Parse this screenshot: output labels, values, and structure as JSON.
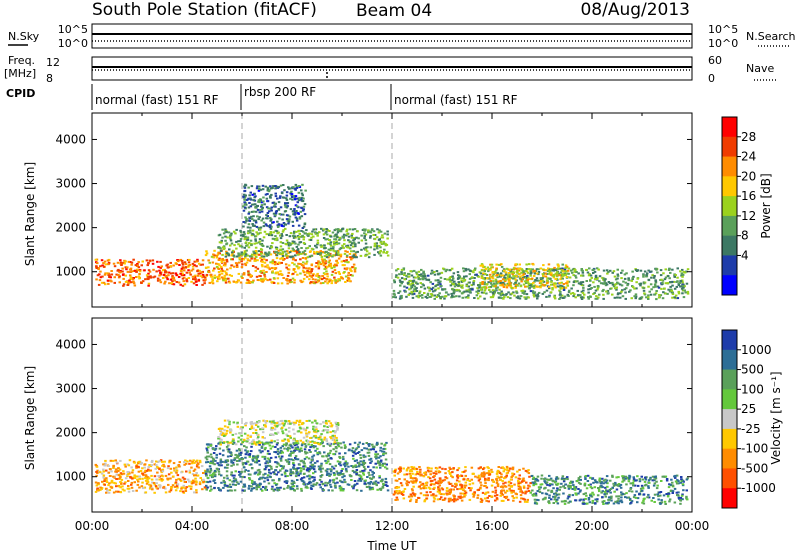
{
  "header": {
    "station": "South Pole Station (fitACF)",
    "beam": "Beam 04",
    "date": "08/Aug/2013"
  },
  "strips": {
    "nsky_label": "N.Sky",
    "nsky_ticks": [
      "10^5",
      "10^0"
    ],
    "nsearch_label": "N.Search",
    "nsearch_ticks": [
      "10^5",
      "10^0"
    ],
    "freq_label": "Freq.",
    "freq_unit": "[MHz]",
    "freq_ticks": [
      "12",
      "8"
    ],
    "nave_label": "Nave",
    "nave_ticks": [
      "60",
      "0"
    ],
    "cpid_label": "CPID",
    "cpid_segments": [
      {
        "start_h": 0,
        "end_h": 6,
        "label": "normal (fast) 151 RF"
      },
      {
        "start_h": 6,
        "end_h": 12,
        "label": "rbsp 200 RF"
      },
      {
        "start_h": 12,
        "end_h": 24,
        "label": "normal (fast) 151 RF"
      }
    ]
  },
  "chart_data": [
    {
      "type": "heatmap",
      "name": "power",
      "ylabel": "Slant Range [km]",
      "xlabel": "",
      "xlim_hours": [
        0,
        24
      ],
      "ylim": [
        200,
        4600
      ],
      "yticks": [
        1000,
        2000,
        3000,
        4000
      ],
      "colorbar": {
        "label": "Power [dB]",
        "ticks": [
          "28",
          "24",
          "20",
          "16",
          "12",
          "8",
          "4"
        ],
        "colors": [
          "#ff0000",
          "#f03c00",
          "#ff8c00",
          "#ffc800",
          "#9bd21e",
          "#5aa05a",
          "#3c7864",
          "#1e3caa",
          "#0000ff"
        ]
      },
      "regions": [
        {
          "t0": 0.1,
          "t1": 4.5,
          "r0": 700,
          "r1": 1300,
          "v": 0.82
        },
        {
          "t0": 4.5,
          "t1": 10.5,
          "r0": 750,
          "r1": 1500,
          "v": 0.7
        },
        {
          "t0": 5.0,
          "t1": 11.8,
          "r0": 1350,
          "r1": 2000,
          "v": 0.38
        },
        {
          "t0": 6.0,
          "t1": 8.5,
          "r0": 2000,
          "r1": 3000,
          "v": 0.22
        },
        {
          "t0": 12.0,
          "t1": 23.8,
          "r0": 400,
          "r1": 1100,
          "v": 0.35
        },
        {
          "t0": 15.5,
          "t1": 19.0,
          "r0": 650,
          "r1": 1200,
          "v": 0.6
        }
      ]
    },
    {
      "type": "heatmap",
      "name": "velocity",
      "ylabel": "Slant Range [km]",
      "xlabel": "Time UT",
      "xlim_hours": [
        0,
        24
      ],
      "ylim": [
        200,
        4600
      ],
      "yticks": [
        1000,
        2000,
        3000,
        4000
      ],
      "xticks": [
        "00:00",
        "04:00",
        "08:00",
        "12:00",
        "16:00",
        "20:00",
        "00:00"
      ],
      "colorbar": {
        "label": "Velocity [m s⁻¹]",
        "ticks": [
          "1000",
          "500",
          "100",
          "25",
          "-25",
          "-100",
          "-500",
          "-1000"
        ],
        "colors": [
          "#1e3caa",
          "#2d6e96",
          "#5aa05a",
          "#64c83c",
          "#c8c8c8",
          "#ffc800",
          "#ff8c00",
          "#ff5000",
          "#ff0000"
        ]
      },
      "regions": [
        {
          "t0": 0.1,
          "t1": 4.5,
          "r0": 650,
          "r1": 1400,
          "v": 0.32
        },
        {
          "t0": 4.5,
          "t1": 11.8,
          "r0": 700,
          "r1": 1800,
          "v": 0.82
        },
        {
          "t0": 5.0,
          "t1": 9.8,
          "r0": 1750,
          "r1": 2300,
          "v": 0.5
        },
        {
          "t0": 12.0,
          "t1": 17.5,
          "r0": 450,
          "r1": 1250,
          "v": 0.25
        },
        {
          "t0": 17.5,
          "t1": 23.8,
          "r0": 400,
          "r1": 1050,
          "v": 0.8
        }
      ]
    }
  ]
}
